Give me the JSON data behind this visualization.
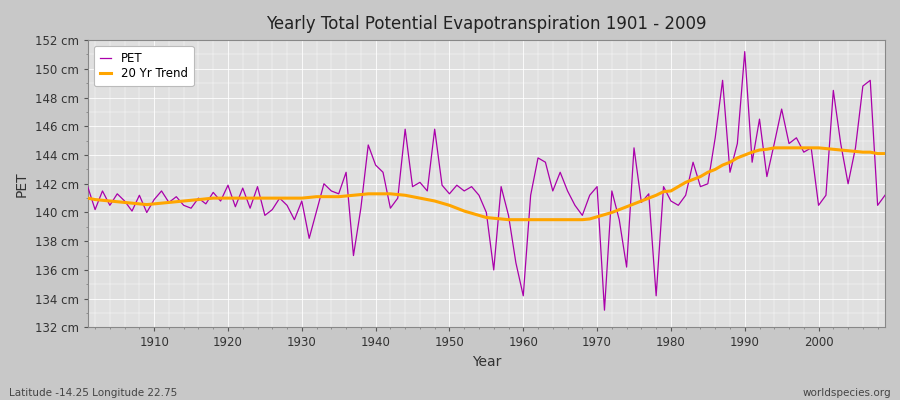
{
  "title": "Yearly Total Potential Evapotranspiration 1901 - 2009",
  "xlabel": "Year",
  "ylabel": "PET",
  "lat_lon_label": "Latitude -14.25 Longitude 22.75",
  "watermark": "worldspecies.org",
  "pet_color": "#aa00aa",
  "trend_color": "#FFA500",
  "bg_outer": "#c8c8c8",
  "bg_plot": "#e0e0e0",
  "grid_color": "#ffffff",
  "ylim": [
    132,
    152
  ],
  "yticks": [
    132,
    134,
    136,
    138,
    140,
    142,
    144,
    146,
    148,
    150,
    152
  ],
  "years": [
    1901,
    1902,
    1903,
    1904,
    1905,
    1906,
    1907,
    1908,
    1909,
    1910,
    1911,
    1912,
    1913,
    1914,
    1915,
    1916,
    1917,
    1918,
    1919,
    1920,
    1921,
    1922,
    1923,
    1924,
    1925,
    1926,
    1927,
    1928,
    1929,
    1930,
    1931,
    1932,
    1933,
    1934,
    1935,
    1936,
    1937,
    1938,
    1939,
    1940,
    1941,
    1942,
    1943,
    1944,
    1945,
    1946,
    1947,
    1948,
    1949,
    1950,
    1951,
    1952,
    1953,
    1954,
    1955,
    1956,
    1957,
    1958,
    1959,
    1960,
    1961,
    1962,
    1963,
    1964,
    1965,
    1966,
    1967,
    1968,
    1969,
    1970,
    1971,
    1972,
    1973,
    1974,
    1975,
    1976,
    1977,
    1978,
    1979,
    1980,
    1981,
    1982,
    1983,
    1984,
    1985,
    1986,
    1987,
    1988,
    1989,
    1990,
    1991,
    1992,
    1993,
    1994,
    1995,
    1996,
    1997,
    1998,
    1999,
    2000,
    2001,
    2002,
    2003,
    2004,
    2005,
    2006,
    2007,
    2008,
    2009
  ],
  "pet_values": [
    141.8,
    140.2,
    141.5,
    140.5,
    141.3,
    140.8,
    140.1,
    141.2,
    140.0,
    140.9,
    141.5,
    140.7,
    141.1,
    140.5,
    140.3,
    141.0,
    140.6,
    141.4,
    140.8,
    141.9,
    140.4,
    141.7,
    140.3,
    141.8,
    139.8,
    140.2,
    141.0,
    140.5,
    139.5,
    140.8,
    138.2,
    140.1,
    142.0,
    141.5,
    141.3,
    142.8,
    137.0,
    140.3,
    144.7,
    143.3,
    142.8,
    140.3,
    141.0,
    145.8,
    141.8,
    142.1,
    141.5,
    145.8,
    141.9,
    141.3,
    141.9,
    141.5,
    141.8,
    141.2,
    140.0,
    136.0,
    141.8,
    139.8,
    136.5,
    134.2,
    141.2,
    143.8,
    143.5,
    141.5,
    142.8,
    141.5,
    140.5,
    139.8,
    141.2,
    141.8,
    133.2,
    141.5,
    139.5,
    136.2,
    144.5,
    140.7,
    141.3,
    134.2,
    141.8,
    140.8,
    140.5,
    141.2,
    143.5,
    141.8,
    142.0,
    145.2,
    149.2,
    142.8,
    144.8,
    151.2,
    143.5,
    146.5,
    142.5,
    144.8,
    147.2,
    144.8,
    145.2,
    144.2,
    144.5,
    140.5,
    141.2,
    148.5,
    144.8,
    142.0,
    144.5,
    148.8,
    149.2,
    140.5,
    141.2
  ],
  "trend_values": [
    141.0,
    140.9,
    140.85,
    140.8,
    140.75,
    140.7,
    140.65,
    140.6,
    140.55,
    140.6,
    140.65,
    140.7,
    140.75,
    140.8,
    140.85,
    140.9,
    140.95,
    141.0,
    141.0,
    141.0,
    141.0,
    141.0,
    141.0,
    141.0,
    141.0,
    141.0,
    141.0,
    141.0,
    141.0,
    141.0,
    141.05,
    141.1,
    141.1,
    141.1,
    141.1,
    141.15,
    141.2,
    141.25,
    141.3,
    141.3,
    141.3,
    141.3,
    141.25,
    141.2,
    141.1,
    141.0,
    140.9,
    140.8,
    140.65,
    140.5,
    140.3,
    140.1,
    139.95,
    139.8,
    139.65,
    139.6,
    139.55,
    139.5,
    139.5,
    139.5,
    139.5,
    139.5,
    139.5,
    139.5,
    139.5,
    139.5,
    139.5,
    139.5,
    139.55,
    139.7,
    139.85,
    140.0,
    140.2,
    140.4,
    140.6,
    140.8,
    141.0,
    141.2,
    141.45,
    141.5,
    141.8,
    142.1,
    142.3,
    142.5,
    142.8,
    143.0,
    143.3,
    143.5,
    143.8,
    144.0,
    144.2,
    144.35,
    144.4,
    144.5,
    144.5,
    144.5,
    144.5,
    144.5,
    144.5,
    144.5,
    144.45,
    144.4,
    144.35,
    144.3,
    144.25,
    144.2,
    144.2,
    144.1,
    144.1
  ]
}
